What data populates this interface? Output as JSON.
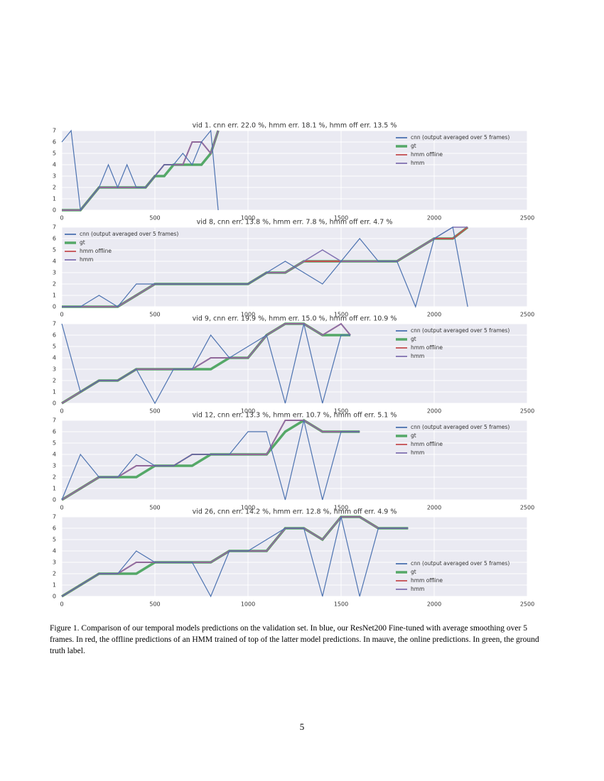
{
  "chart_data": [
    {
      "type": "line",
      "title": "vid 1. cnn err. 22.0 %, hmm err. 18.1 %, hmm off err. 13.5 %",
      "x": [
        0,
        50,
        100,
        150,
        200,
        250,
        300,
        350,
        400,
        450,
        500,
        550,
        600,
        650,
        700,
        750,
        800,
        840
      ],
      "xlim": [
        0,
        2500
      ],
      "xticks": [
        0,
        500,
        1000,
        1500,
        2000,
        2500
      ],
      "ylim": [
        0,
        7
      ],
      "yticks": [
        0,
        1,
        2,
        3,
        4,
        5,
        6,
        7
      ],
      "grid": true,
      "legend": "upper right",
      "series": [
        {
          "name": "cnn (output averaged over 5 frames)",
          "color": "#4c72b0",
          "values": [
            6,
            7,
            0,
            1,
            2,
            4,
            2,
            4,
            2,
            2,
            3,
            4,
            4,
            5,
            4,
            6,
            7,
            0
          ]
        },
        {
          "name": "gt",
          "color": "#55a868",
          "values": [
            0,
            0,
            0,
            1,
            2,
            2,
            2,
            2,
            2,
            2,
            3,
            3,
            4,
            4,
            4,
            4,
            5,
            7
          ]
        },
        {
          "name": "hmm offline",
          "color": "#c44e52",
          "values": [
            0,
            0,
            0,
            1,
            2,
            2,
            2,
            2,
            2,
            2,
            3,
            4,
            4,
            4,
            6,
            6,
            5,
            7
          ]
        },
        {
          "name": "hmm",
          "color": "#8172b2",
          "values": [
            0,
            0,
            0,
            1,
            2,
            2,
            2,
            2,
            2,
            2,
            3,
            4,
            4,
            4,
            6,
            6,
            5,
            7
          ]
        }
      ]
    },
    {
      "type": "line",
      "title": "vid 8, cnn err. 13.8 %, hmm err. 7.8 %, hmm off err. 4.7 %",
      "x": [
        0,
        100,
        200,
        300,
        400,
        500,
        600,
        700,
        800,
        900,
        1000,
        1100,
        1200,
        1300,
        1400,
        1500,
        1600,
        1700,
        1800,
        1900,
        2000,
        2100,
        2180
      ],
      "xlim": [
        0,
        2500
      ],
      "xticks": [
        0,
        500,
        1000,
        1500,
        2000,
        2500
      ],
      "ylim": [
        0,
        7
      ],
      "yticks": [
        0,
        1,
        2,
        3,
        4,
        5,
        6,
        7
      ],
      "grid": true,
      "legend": "upper left",
      "series": [
        {
          "name": "cnn (output averaged over 5 frames)",
          "color": "#4c72b0",
          "values": [
            0,
            0,
            1,
            0,
            2,
            2,
            2,
            2,
            2,
            2,
            2,
            3,
            4,
            3,
            2,
            4,
            6,
            4,
            4,
            0,
            6,
            7,
            0
          ]
        },
        {
          "name": "gt",
          "color": "#55a868",
          "values": [
            0,
            0,
            0,
            0,
            1,
            2,
            2,
            2,
            2,
            2,
            2,
            3,
            3,
            4,
            4,
            4,
            4,
            4,
            4,
            5,
            6,
            6,
            7
          ]
        },
        {
          "name": "hmm offline",
          "color": "#c44e52",
          "values": [
            0,
            0,
            0,
            0,
            1,
            2,
            2,
            2,
            2,
            2,
            2,
            3,
            3,
            4,
            4,
            4,
            4,
            4,
            4,
            5,
            6,
            6,
            7
          ]
        },
        {
          "name": "hmm",
          "color": "#8172b2",
          "values": [
            0,
            0,
            0,
            0,
            1,
            2,
            2,
            2,
            2,
            2,
            2,
            3,
            3,
            4,
            5,
            4,
            4,
            4,
            4,
            5,
            6,
            7,
            7
          ]
        }
      ]
    },
    {
      "type": "line",
      "title": "vid 9, cnn err. 19.9 %, hmm err. 15.0 %, hmm off err. 10.9 %",
      "x": [
        0,
        100,
        200,
        300,
        400,
        500,
        600,
        700,
        800,
        900,
        1000,
        1100,
        1200,
        1300,
        1400,
        1500,
        1550
      ],
      "xlim": [
        0,
        2500
      ],
      "xticks": [
        0,
        500,
        1000,
        1500,
        2000,
        2500
      ],
      "ylim": [
        0,
        7
      ],
      "yticks": [
        0,
        1,
        2,
        3,
        4,
        5,
        6,
        7
      ],
      "grid": true,
      "legend": "upper right",
      "series": [
        {
          "name": "cnn (output averaged over 5 frames)",
          "color": "#4c72b0",
          "values": [
            7,
            1,
            2,
            2,
            3,
            0,
            3,
            3,
            6,
            4,
            5,
            6,
            0,
            7,
            0,
            6,
            6
          ]
        },
        {
          "name": "gt",
          "color": "#55a868",
          "values": [
            0,
            1,
            2,
            2,
            3,
            3,
            3,
            3,
            3,
            4,
            4,
            6,
            7,
            7,
            6,
            6,
            6
          ]
        },
        {
          "name": "hmm offline",
          "color": "#c44e52",
          "values": [
            0,
            1,
            2,
            2,
            3,
            3,
            3,
            3,
            4,
            4,
            4,
            6,
            7,
            7,
            6,
            7,
            6
          ]
        },
        {
          "name": "hmm",
          "color": "#8172b2",
          "values": [
            0,
            1,
            2,
            2,
            3,
            3,
            3,
            3,
            4,
            4,
            4,
            6,
            7,
            7,
            6,
            7,
            6
          ]
        }
      ]
    },
    {
      "type": "line",
      "title": "vid 12, cnn err. 13.3 %, hmm err. 10.7 %, hmm off err. 5.1 %",
      "x": [
        0,
        100,
        200,
        300,
        400,
        500,
        600,
        700,
        800,
        900,
        1000,
        1100,
        1200,
        1300,
        1400,
        1500,
        1600
      ],
      "xlim": [
        0,
        2500
      ],
      "xticks": [
        0,
        500,
        1000,
        1500,
        2000,
        2500
      ],
      "ylim": [
        0,
        7
      ],
      "yticks": [
        0,
        1,
        2,
        3,
        4,
        5,
        6,
        7
      ],
      "grid": true,
      "legend": "upper right",
      "series": [
        {
          "name": "cnn (output averaged over 5 frames)",
          "color": "#4c72b0",
          "values": [
            0,
            4,
            2,
            2,
            4,
            3,
            3,
            4,
            4,
            4,
            6,
            6,
            0,
            7,
            0,
            6,
            6
          ]
        },
        {
          "name": "gt",
          "color": "#55a868",
          "values": [
            0,
            1,
            2,
            2,
            2,
            3,
            3,
            3,
            4,
            4,
            4,
            4,
            6,
            7,
            6,
            6,
            6
          ]
        },
        {
          "name": "hmm offline",
          "color": "#c44e52",
          "values": [
            0,
            1,
            2,
            2,
            3,
            3,
            3,
            4,
            4,
            4,
            4,
            4,
            7,
            7,
            6,
            6,
            6
          ]
        },
        {
          "name": "hmm",
          "color": "#8172b2",
          "values": [
            0,
            1,
            2,
            2,
            3,
            3,
            3,
            4,
            4,
            4,
            4,
            4,
            7,
            7,
            6,
            6,
            6
          ]
        }
      ]
    },
    {
      "type": "line",
      "title": "vid 26, cnn err. 14.2 %, hmm err. 12.8 %, hmm off err. 4.9 %",
      "x": [
        0,
        100,
        200,
        300,
        400,
        500,
        600,
        700,
        800,
        900,
        1000,
        1100,
        1200,
        1300,
        1400,
        1500,
        1600,
        1700,
        1800,
        1860
      ],
      "xlim": [
        0,
        2500
      ],
      "xticks": [
        0,
        500,
        1000,
        1500,
        2000,
        2500
      ],
      "ylim": [
        0,
        7
      ],
      "yticks": [
        0,
        1,
        2,
        3,
        4,
        5,
        6,
        7
      ],
      "grid": true,
      "legend": "lower right",
      "series": [
        {
          "name": "cnn (output averaged over 5 frames)",
          "color": "#4c72b0",
          "values": [
            0,
            1,
            2,
            2,
            4,
            3,
            3,
            3,
            0,
            4,
            4,
            5,
            6,
            6,
            0,
            7,
            0,
            6,
            6,
            6
          ]
        },
        {
          "name": "gt",
          "color": "#55a868",
          "values": [
            0,
            1,
            2,
            2,
            2,
            3,
            3,
            3,
            3,
            4,
            4,
            4,
            6,
            6,
            5,
            7,
            7,
            6,
            6,
            6
          ]
        },
        {
          "name": "hmm offline",
          "color": "#c44e52",
          "values": [
            0,
            1,
            2,
            2,
            3,
            3,
            3,
            3,
            3,
            4,
            4,
            4,
            6,
            6,
            5,
            7,
            7,
            6,
            6,
            6
          ]
        },
        {
          "name": "hmm",
          "color": "#8172b2",
          "values": [
            0,
            1,
            2,
            2,
            3,
            3,
            3,
            3,
            3,
            4,
            4,
            4,
            6,
            6,
            5,
            7,
            7,
            6,
            6,
            6
          ]
        }
      ]
    }
  ],
  "caption": "Figure 1. Comparison of our temporal models predictions on the validation set. In blue, our ResNet200 Fine-tuned with average smoothing over 5 frames. In red, the offline predictions of an HMM trained of top of the latter model predictions. In mauve, the online predictions. In green, the ground truth label.",
  "page_number": "5"
}
